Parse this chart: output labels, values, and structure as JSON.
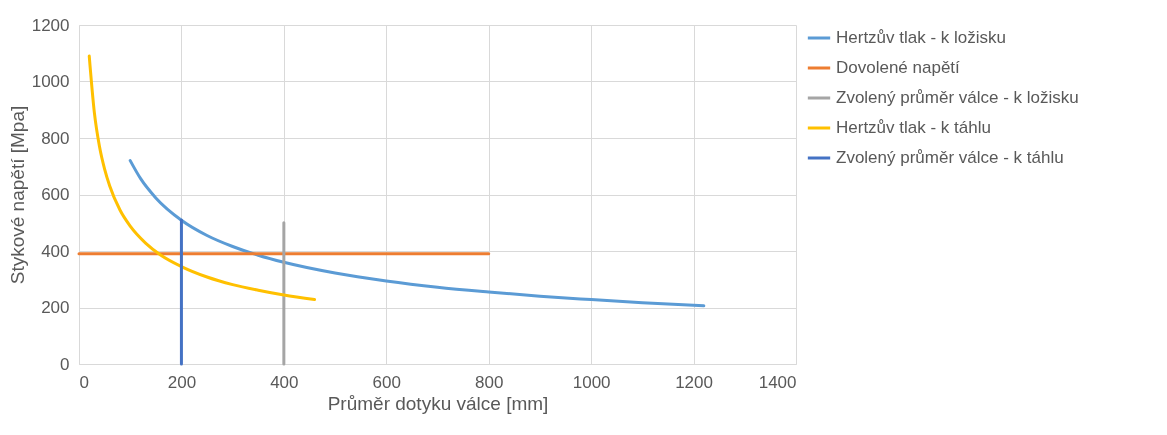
{
  "chart_data": {
    "type": "line",
    "xlabel": "Průměr dotyku válce [mm]",
    "ylabel": "Stykové napětí [Mpa]",
    "xlim": [
      0,
      1400
    ],
    "xticks": [
      0,
      200,
      400,
      600,
      800,
      1000,
      1200,
      1400
    ],
    "ylim": [
      0,
      1200
    ],
    "yticks": [
      0,
      200,
      400,
      600,
      800,
      1000,
      1200
    ],
    "grid": true,
    "legend": "right",
    "series": [
      {
        "name": "Hertzův tlak - k ložisku",
        "color": "#5b9bd5",
        "x": [
          100,
          120,
          150,
          200,
          250,
          300,
          350,
          400,
          500,
          600,
          700,
          800,
          900,
          1000,
          1100,
          1220
        ],
        "values": [
          720,
          657,
          588,
          509,
          455,
          416,
          385,
          360,
          322,
          294,
          272,
          255,
          240,
          228,
          217,
          206
        ]
      },
      {
        "name": "Dovolené napětí",
        "color": "#ed7d31",
        "x": [
          0,
          800
        ],
        "values": [
          390,
          390
        ]
      },
      {
        "name": "Zvolený průměr válce - k ložisku",
        "color": "#a5a5a5",
        "x": [
          400,
          400
        ],
        "values": [
          0,
          500
        ]
      },
      {
        "name": "Hertzův tlak - k táhlu",
        "color": "#ffc000",
        "x": [
          20,
          30,
          40,
          50,
          60,
          80,
          100,
          130,
          160,
          200,
          250,
          300,
          350,
          400,
          460
        ],
        "values": [
          1090,
          890,
          770,
          690,
          630,
          545,
          488,
          428,
          385,
          345,
          308,
          281,
          261,
          244,
          228
        ]
      },
      {
        "name": "Zvolený průměr válce - k táhlu",
        "color": "#4472c4",
        "x": [
          200,
          200
        ],
        "values": [
          0,
          510
        ]
      }
    ]
  }
}
